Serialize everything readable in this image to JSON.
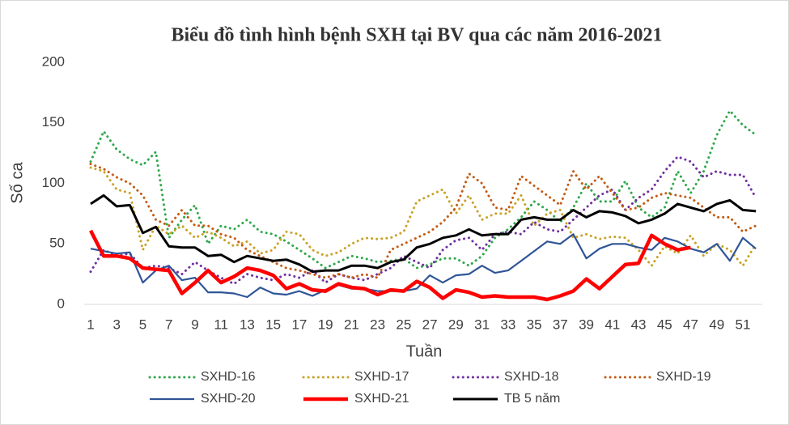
{
  "chart_data": {
    "type": "line",
    "title": "Biểu đồ tình hình bệnh SXH tại BV qua các năm 2016-2021",
    "x_label": "Tuần",
    "y_label": "Số ca",
    "categories": [
      1,
      null,
      3,
      null,
      5,
      null,
      7,
      null,
      9,
      null,
      11,
      null,
      13,
      null,
      15,
      null,
      17,
      null,
      19,
      null,
      21,
      null,
      23,
      null,
      25,
      null,
      27,
      null,
      29,
      null,
      31,
      null,
      33,
      null,
      35,
      null,
      37,
      null,
      39,
      null,
      41,
      null,
      43,
      null,
      45,
      null,
      47,
      null,
      49,
      null,
      51,
      null
    ],
    "ylim": [
      0,
      200
    ],
    "yticks": [
      0,
      50,
      100,
      150,
      200
    ],
    "grid": false,
    "series": [
      {
        "name": "SXHD-16",
        "color": "#2ea84a",
        "line_style": "dotted",
        "values": [
          118,
          143,
          128,
          120,
          115,
          126,
          55,
          70,
          82,
          50,
          65,
          62,
          70,
          60,
          58,
          52,
          45,
          38,
          30,
          35,
          40,
          38,
          35,
          36,
          38,
          30,
          33,
          38,
          38,
          32,
          40,
          55,
          62,
          72,
          85,
          78,
          68,
          80,
          100,
          85,
          85,
          102,
          80,
          72,
          80,
          110,
          92,
          110,
          140,
          160,
          148,
          140
        ]
      },
      {
        "name": "SXHD-17",
        "color": "#c9a227",
        "line_style": "dotted",
        "values": [
          113,
          110,
          95,
          92,
          45,
          65,
          58,
          65,
          55,
          60,
          55,
          48,
          52,
          42,
          45,
          60,
          58,
          45,
          40,
          43,
          50,
          55,
          54,
          55,
          60,
          85,
          90,
          95,
          75,
          90,
          70,
          75,
          75,
          90,
          65,
          75,
          78,
          55,
          58,
          54,
          56,
          55,
          45,
          32,
          48,
          42,
          57,
          40,
          50,
          45,
          32,
          50
        ]
      },
      {
        "name": "SXHD-18",
        "color": "#7030a0",
        "line_style": "dotted",
        "values": [
          27,
          45,
          40,
          42,
          30,
          32,
          30,
          25,
          35,
          28,
          22,
          17,
          25,
          22,
          20,
          25,
          22,
          28,
          18,
          25,
          22,
          20,
          25,
          30,
          40,
          35,
          30,
          45,
          53,
          55,
          45,
          58,
          60,
          58,
          68,
          62,
          60,
          70,
          80,
          90,
          95,
          78,
          88,
          95,
          110,
          122,
          118,
          105,
          110,
          107,
          107,
          88
        ]
      },
      {
        "name": "SXHD-19",
        "color": "#c55a11",
        "line_style": "dotted",
        "values": [
          116,
          112,
          105,
          100,
          90,
          70,
          65,
          78,
          65,
          65,
          58,
          55,
          45,
          40,
          35,
          30,
          28,
          25,
          22,
          25,
          22,
          25,
          22,
          45,
          50,
          55,
          60,
          68,
          80,
          108,
          100,
          80,
          78,
          106,
          98,
          90,
          82,
          110,
          95,
          106,
          92,
          78,
          80,
          88,
          92,
          90,
          88,
          80,
          72,
          72,
          60,
          65
        ]
      },
      {
        "name": "SXHD-20",
        "color": "#2f5597",
        "line_style": "solid",
        "values": [
          46,
          44,
          42,
          43,
          18,
          28,
          32,
          20,
          22,
          10,
          10,
          9,
          6,
          14,
          9,
          8,
          11,
          7,
          12,
          16,
          13,
          13,
          11,
          11,
          11,
          13,
          24,
          18,
          24,
          25,
          32,
          26,
          28,
          36,
          44,
          52,
          50,
          58,
          38,
          46,
          50,
          50,
          47,
          45,
          55,
          52,
          46,
          43,
          50,
          36,
          55,
          46
        ]
      },
      {
        "name": "SXHD-21",
        "color": "#ff0000",
        "line_style": "bold",
        "values": [
          61,
          40,
          40,
          38,
          30,
          29,
          28,
          9,
          18,
          28,
          18,
          23,
          30,
          28,
          24,
          13,
          17,
          12,
          11,
          17,
          14,
          13,
          8,
          12,
          11,
          19,
          14,
          5,
          12,
          10,
          6,
          7,
          6,
          6,
          6,
          4,
          7,
          11,
          21,
          13,
          23,
          33,
          34,
          57,
          50,
          45,
          47,
          null,
          null,
          null,
          null,
          null
        ]
      },
      {
        "name": "TB 5 năm",
        "color": "#000000",
        "line_style": "solid",
        "values": [
          83,
          90,
          81,
          82,
          59,
          64,
          48,
          47,
          47,
          40,
          41,
          35,
          40,
          38,
          36,
          37,
          33,
          27,
          28,
          28,
          32,
          32,
          30,
          35,
          37,
          47,
          50,
          55,
          57,
          62,
          57,
          58,
          58,
          70,
          72,
          70,
          70,
          78,
          72,
          77,
          76,
          73,
          67,
          70,
          75,
          83,
          80,
          77,
          83,
          86,
          78,
          77
        ]
      }
    ]
  }
}
